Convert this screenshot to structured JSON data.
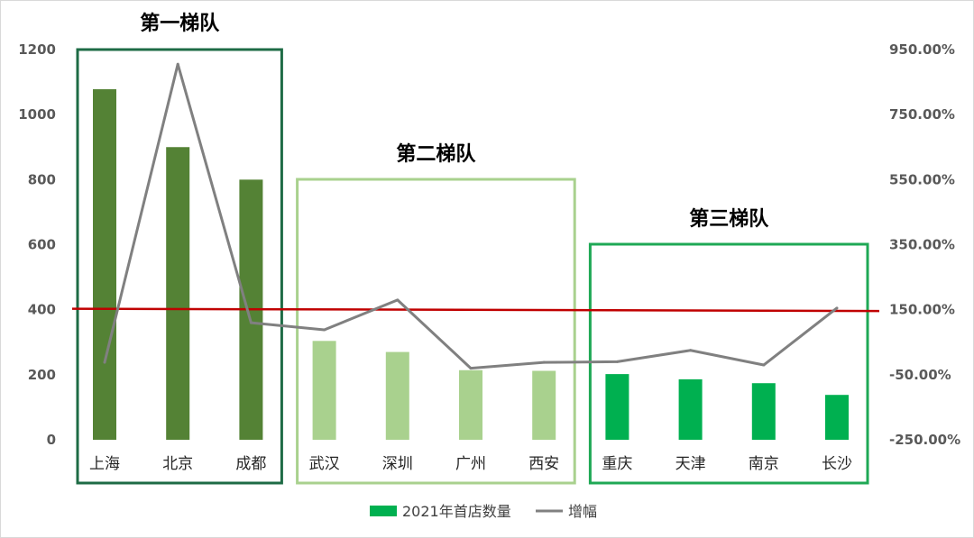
{
  "chart_data": {
    "type": "bar",
    "categories": [
      "上海",
      "北京",
      "成都",
      "武汉",
      "深圳",
      "广州",
      "西安",
      "重庆",
      "天津",
      "南京",
      "长沙"
    ],
    "series": [
      {
        "name": "2021年首店数量",
        "type": "bar",
        "axis": "left",
        "values": [
          1078,
          900,
          800,
          304,
          270,
          214,
          212,
          202,
          186,
          174,
          138
        ]
      },
      {
        "name": "增幅",
        "type": "line",
        "axis": "right",
        "unit": "%",
        "values": [
          -12,
          905,
          110,
          88,
          180,
          -30,
          -12,
          -10,
          25,
          -20,
          155
        ]
      }
    ],
    "reference_line": {
      "axis": "left",
      "start_value": 403,
      "end_value": 396,
      "color": "#c00000"
    },
    "y_left": {
      "ylim": [
        0,
        1200
      ],
      "ticks": [
        "0",
        "200",
        "400",
        "600",
        "800",
        "1000",
        "1200"
      ],
      "tick_values": [
        0,
        200,
        400,
        600,
        800,
        1000,
        1200
      ]
    },
    "y_right": {
      "ylim": [
        -250,
        950
      ],
      "ticks": [
        "-250.00%",
        "-50.00%",
        "150.00%",
        "350.00%",
        "550.00%",
        "750.00%",
        "950.00%"
      ],
      "tick_values": [
        -250,
        -50,
        150,
        350,
        550,
        750,
        950
      ]
    },
    "grid": false,
    "legend": {
      "position": "bottom",
      "items": [
        {
          "label": "2021年首店数量",
          "color": "#00b050"
        },
        {
          "label": "增幅",
          "color": "#808080"
        }
      ]
    },
    "tiers": [
      {
        "title": "第一梯队",
        "start": 0,
        "end": 2,
        "border": "#1e6b45",
        "bar_color": "#548235"
      },
      {
        "title": "第二梯队",
        "start": 3,
        "end": 6,
        "border": "#a9d18e",
        "bar_color": "#a9d18e"
      },
      {
        "title": "第三梯队",
        "start": 7,
        "end": 10,
        "border": "#1fa855",
        "bar_color": "#00b050"
      }
    ],
    "line_color": "#808080"
  }
}
